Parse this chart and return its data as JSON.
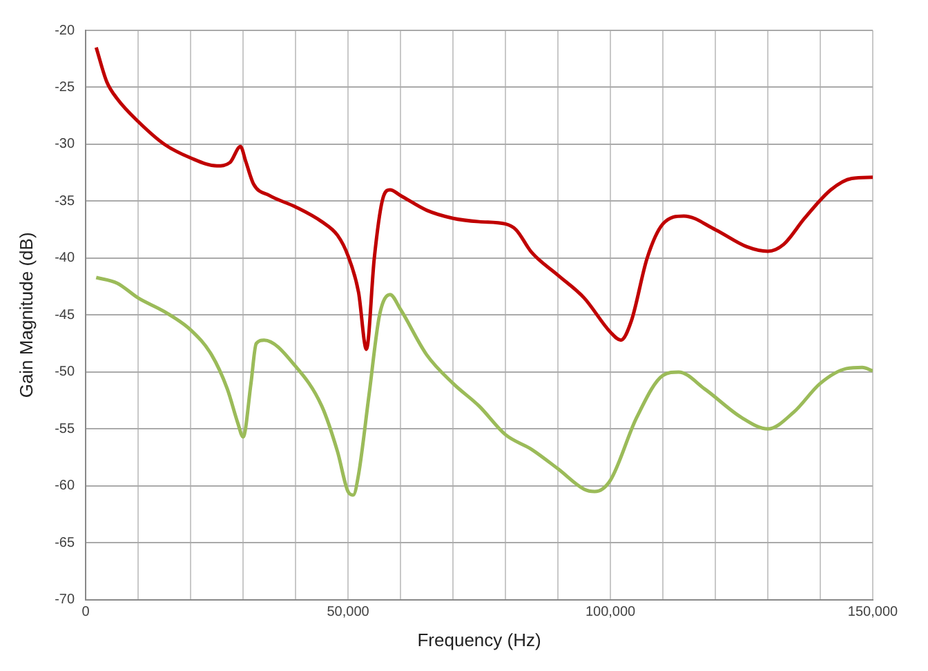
{
  "chart_data": {
    "type": "line",
    "xlabel": "Frequency (Hz)",
    "ylabel": "Gain Magnitude (dB)",
    "grid": true,
    "legend": false,
    "marker": "none",
    "line_style": "solid",
    "xlim": [
      0,
      150000
    ],
    "ylim": [
      -70,
      -20
    ],
    "xticks": [
      0,
      {
        "value": 10000,
        "label": null
      },
      {
        "value": 20000,
        "label": null
      },
      {
        "value": 30000,
        "label": null
      },
      {
        "value": 40000,
        "label": null
      },
      {
        "value": 50000,
        "label": "50,000"
      },
      {
        "value": 60000,
        "label": null
      },
      {
        "value": 70000,
        "label": null
      },
      {
        "value": 80000,
        "label": null
      },
      {
        "value": 90000,
        "label": null
      },
      {
        "value": 100000,
        "label": "100,000"
      },
      {
        "value": 110000,
        "label": null
      },
      {
        "value": 120000,
        "label": null
      },
      {
        "value": 130000,
        "label": null
      },
      {
        "value": 140000,
        "label": null
      },
      {
        "value": 150000,
        "label": "150,000"
      }
    ],
    "yticks": [
      -70,
      -65,
      -60,
      -55,
      -50,
      -45,
      -40,
      -35,
      -30,
      -25,
      -20
    ],
    "series": [
      {
        "color": "#c00000",
        "x": [
          2000,
          4000,
          6000,
          10000,
          15000,
          20000,
          25000,
          27500,
          29500,
          30500,
          32000,
          35000,
          40000,
          45000,
          48000,
          50000,
          52000,
          53500,
          55000,
          56500,
          58000,
          60000,
          65000,
          70000,
          75000,
          80000,
          82000,
          85000,
          90000,
          95000,
          100000,
          102000,
          104000,
          107000,
          110000,
          114000,
          120000,
          126000,
          130000,
          133000,
          137000,
          142000,
          146000,
          150000
        ],
        "values": [
          -21.5,
          -24.5,
          -26,
          -28,
          -30,
          -31.2,
          -31.9,
          -31.6,
          -30.2,
          -31.5,
          -33.5,
          -34.5,
          -35.5,
          -36.8,
          -38,
          -39.8,
          -43,
          -48,
          -40,
          -35,
          -34,
          -34.5,
          -35.8,
          -36.5,
          -36.8,
          -37,
          -37.5,
          -39.5,
          -41.5,
          -43.5,
          -46.5,
          -47.2,
          -45.5,
          -40,
          -37,
          -36.3,
          -37.5,
          -39,
          -39.4,
          -38.8,
          -36.5,
          -34,
          -33,
          -32.9
        ]
      },
      {
        "color": "#9bbb59",
        "x": [
          2000,
          6000,
          10000,
          15000,
          20000,
          24000,
          27000,
          29000,
          30000,
          31500,
          32500,
          34000,
          40000,
          45000,
          48000,
          50000,
          51000,
          52000,
          54000,
          56000,
          58000,
          60000,
          65000,
          70000,
          75000,
          80000,
          85000,
          90000,
          95000,
          97000,
          100000,
          105000,
          110000,
          113000,
          118000,
          125000,
          130000,
          135000,
          140000,
          145000,
          148000,
          150000
        ],
        "values": [
          -41.7,
          -42.2,
          -43.5,
          -44.7,
          -46.3,
          -48.5,
          -51.5,
          -54.5,
          -55.7,
          -51,
          -47.5,
          -47.2,
          -49.5,
          -53,
          -57,
          -60.5,
          -60.8,
          -59,
          -52,
          -45,
          -43.2,
          -44.5,
          -48.5,
          -51,
          -53,
          -55.5,
          -56.8,
          -58.5,
          -60.3,
          -60.5,
          -59.5,
          -54,
          -50.3,
          -50,
          -51.5,
          -54,
          -55,
          -53.5,
          -51,
          -49.7,
          -49.6,
          -49.9
        ]
      }
    ]
  }
}
